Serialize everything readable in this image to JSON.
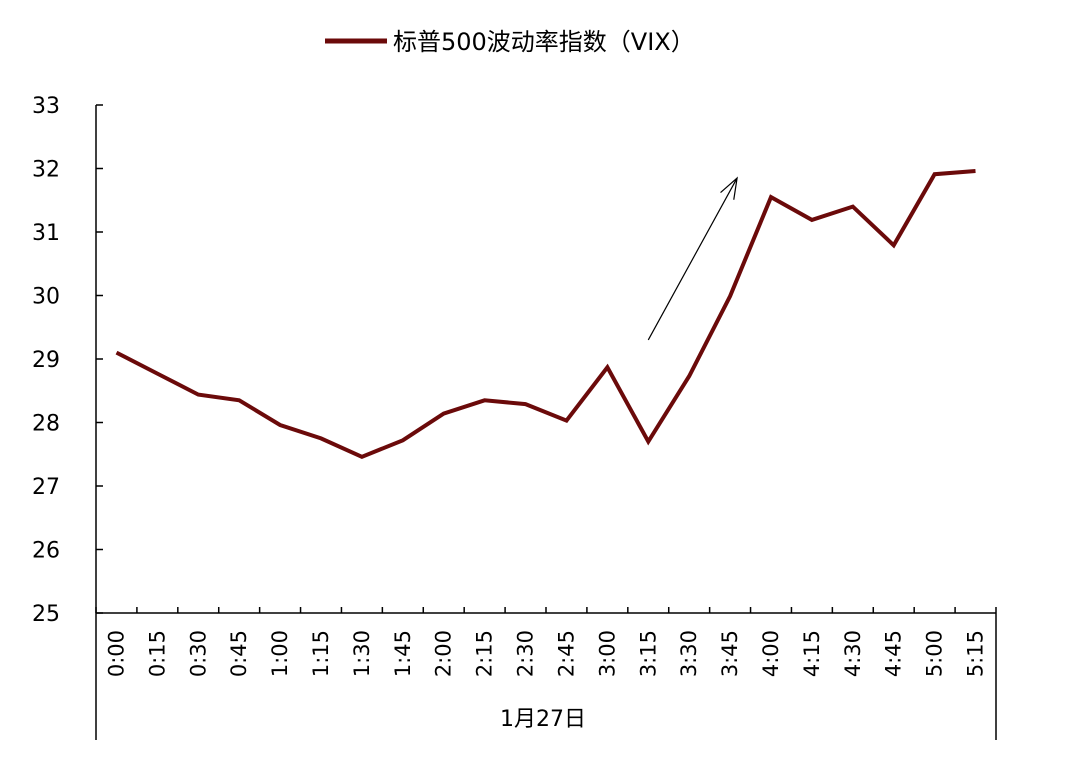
{
  "chart_data": {
    "type": "line",
    "title": "",
    "xlabel": "1月27日",
    "ylabel": "",
    "ylim": [
      25,
      33
    ],
    "yticks": [
      25,
      26,
      27,
      28,
      29,
      30,
      31,
      32,
      33
    ],
    "grid": false,
    "legend_position": "top-center",
    "categories": [
      "0:00",
      "0:15",
      "0:30",
      "0:45",
      "1:00",
      "1:15",
      "1:30",
      "1:45",
      "2:00",
      "2:15",
      "2:30",
      "2:45",
      "3:00",
      "3:15",
      "3:30",
      "3:45",
      "4:00",
      "4:15",
      "4:30",
      "4:45",
      "5:00",
      "5:15"
    ],
    "series": [
      {
        "name": "标普500波动率指数（VIX）",
        "color": "#6b0a0a",
        "values": [
          29.1,
          28.77,
          28.44,
          28.35,
          27.96,
          27.75,
          27.46,
          27.72,
          28.14,
          28.35,
          28.29,
          28.03,
          28.87,
          27.7,
          28.73,
          29.99,
          31.55,
          31.19,
          31.4,
          30.79,
          31.91,
          31.96
        ]
      }
    ],
    "annotations": [
      {
        "type": "arrow",
        "from": {
          "x": "3:15",
          "y": 29.3
        },
        "to": {
          "x": "3:45",
          "y": 31.85
        }
      }
    ]
  }
}
